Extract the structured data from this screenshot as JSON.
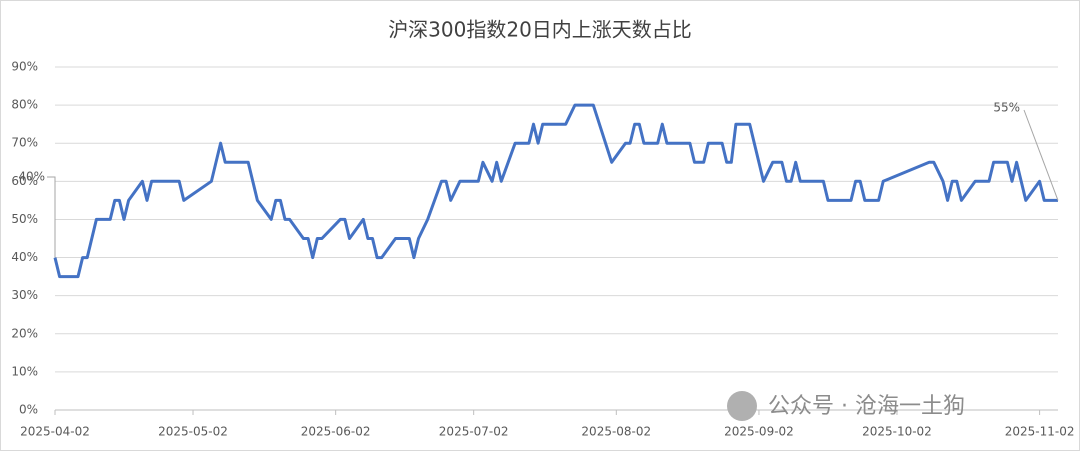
{
  "chart_data": {
    "type": "line",
    "title": "沪深300指数20日内上涨天数占比",
    "x": [
      "2025-04-02",
      "2025-04-03",
      "2025-04-07",
      "2025-04-08",
      "2025-04-09",
      "2025-04-11",
      "2025-04-14",
      "2025-04-15",
      "2025-04-16",
      "2025-04-17",
      "2025-04-18",
      "2025-04-21",
      "2025-04-22",
      "2025-04-23",
      "2025-04-29",
      "2025-04-30",
      "2025-05-06",
      "2025-05-08",
      "2025-05-09",
      "2025-05-14",
      "2025-05-16",
      "2025-05-19",
      "2025-05-20",
      "2025-05-21",
      "2025-05-22",
      "2025-05-23",
      "2025-05-26",
      "2025-05-27",
      "2025-05-28",
      "2025-05-29",
      "2025-05-30",
      "2025-06-03",
      "2025-06-04",
      "2025-06-05",
      "2025-06-08",
      "2025-06-09",
      "2025-06-10",
      "2025-06-11",
      "2025-06-12",
      "2025-06-15",
      "2025-06-18",
      "2025-06-19",
      "2025-06-20",
      "2025-06-22",
      "2025-06-25",
      "2025-06-26",
      "2025-06-27",
      "2025-06-29",
      "2025-07-03",
      "2025-07-04",
      "2025-07-06",
      "2025-07-07",
      "2025-07-08",
      "2025-07-11",
      "2025-07-14",
      "2025-07-15",
      "2025-07-16",
      "2025-07-17",
      "2025-07-22",
      "2025-07-24",
      "2025-07-28",
      "2025-08-01",
      "2025-08-04",
      "2025-08-05",
      "2025-08-06",
      "2025-08-07",
      "2025-08-08",
      "2025-08-11",
      "2025-08-12",
      "2025-08-13",
      "2025-08-18",
      "2025-08-19",
      "2025-08-21",
      "2025-08-22",
      "2025-08-25",
      "2025-08-26",
      "2025-08-27",
      "2025-08-28",
      "2025-08-31",
      "2025-09-03",
      "2025-09-05",
      "2025-09-07",
      "2025-09-08",
      "2025-09-09",
      "2025-09-10",
      "2025-09-11",
      "2025-09-16",
      "2025-09-17",
      "2025-09-22",
      "2025-09-23",
      "2025-09-24",
      "2025-09-25",
      "2025-09-28",
      "2025-09-29",
      "2025-10-09",
      "2025-10-10",
      "2025-10-12",
      "2025-10-13",
      "2025-10-14",
      "2025-10-15",
      "2025-10-16",
      "2025-10-19",
      "2025-10-22",
      "2025-10-23",
      "2025-10-26",
      "2025-10-27",
      "2025-10-28",
      "2025-10-30",
      "2025-11-02",
      "2025-11-03",
      "2025-11-06"
    ],
    "series": [
      {
        "name": "沪深300指数20日内上涨天数占比",
        "color": "#4472c4",
        "values": [
          40,
          35,
          35,
          40,
          40,
          50,
          50,
          55,
          55,
          50,
          55,
          60,
          55,
          60,
          60,
          55,
          60,
          70,
          65,
          65,
          55,
          50,
          55,
          55,
          50,
          50,
          45,
          45,
          40,
          45,
          45,
          50,
          50,
          45,
          50,
          45,
          45,
          40,
          40,
          45,
          45,
          40,
          45,
          50,
          60,
          60,
          55,
          60,
          60,
          65,
          60,
          65,
          60,
          70,
          70,
          75,
          70,
          75,
          75,
          80,
          80,
          65,
          70,
          70,
          75,
          75,
          70,
          70,
          75,
          70,
          70,
          65,
          65,
          70,
          70,
          65,
          65,
          75,
          75,
          60,
          65,
          65,
          60,
          60,
          65,
          60,
          60,
          55,
          55,
          60,
          60,
          55,
          55,
          60,
          65,
          65,
          60,
          55,
          60,
          60,
          55,
          60,
          60,
          65,
          65,
          60,
          65,
          55,
          60,
          55,
          55
        ]
      }
    ],
    "annotations": [
      "40%",
      "55%"
    ],
    "xlim": [
      "2025-04-02",
      "2025-11-06"
    ],
    "xticks": [
      "2025-04-02",
      "2025-05-02",
      "2025-06-02",
      "2025-07-02",
      "2025-08-02",
      "2025-09-02",
      "2025-10-02",
      "2025-11-02"
    ],
    "ylim": [
      0,
      90
    ],
    "yticks": [
      {
        "value": 0,
        "label": "0%"
      },
      {
        "value": 10,
        "label": "10%"
      },
      {
        "value": 20,
        "label": "20%"
      },
      {
        "value": 30,
        "label": "30%"
      },
      {
        "value": 40,
        "label": "40%"
      },
      {
        "value": 50,
        "label": "50%"
      },
      {
        "value": 60,
        "label": "60%"
      },
      {
        "value": 70,
        "label": "70%"
      },
      {
        "value": 80,
        "label": "80%"
      },
      {
        "value": 90,
        "label": "90%"
      }
    ],
    "grid": true,
    "watermark": "公众号 · 沧海一土狗"
  }
}
